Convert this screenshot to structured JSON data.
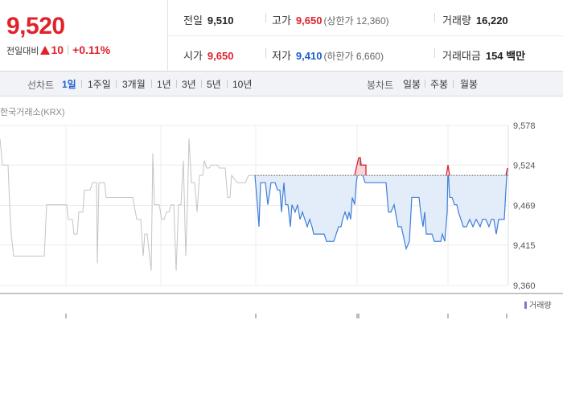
{
  "summary": {
    "price": "9,520",
    "diff_label": "전일대비",
    "diff_value": "10",
    "diff_rate": "+0.11%",
    "prev_close_label": "전일",
    "prev_close": "9,510",
    "high_label": "고가",
    "high": "9,650",
    "upper_limit": "(상한가 12,360)",
    "volume_label": "거래량",
    "volume": "16,220",
    "open_label": "시가",
    "open": "9,650",
    "low_label": "저가",
    "low": "9,410",
    "lower_limit": "(하한가 6,660)",
    "amount_label": "거래대금",
    "amount": "154 백만"
  },
  "tabs": {
    "line_label": "선차트",
    "line": [
      "1일",
      "1주일",
      "3개월",
      "1년",
      "3년",
      "5년",
      "10년"
    ],
    "candle_label": "봉차트",
    "candle": [
      "일봉",
      "주봉",
      "월봉"
    ],
    "active": "1일"
  },
  "chart_data": {
    "type": "line",
    "source_label": "한국거래소(KRX)",
    "ylim": [
      9360,
      9578
    ],
    "y_ticks": [
      "9,578",
      "9,524",
      "9,469",
      "9,415",
      "9,360"
    ],
    "y_tick_values": [
      9578,
      9524,
      9469,
      9415,
      9360
    ],
    "reference_line": 9510,
    "volume_legend": "거래량",
    "colors": {
      "previous": "#c4c4c4",
      "today": "#3f7ed8",
      "above": "#e0222b",
      "fill": "#e3edfa",
      "grid": "#ececec"
    },
    "previous_day": [
      [
        0,
        9560
      ],
      [
        3,
        9524
      ],
      [
        10,
        9524
      ],
      [
        12,
        9470
      ],
      [
        14,
        9430
      ],
      [
        17,
        9400
      ],
      [
        55,
        9400
      ],
      [
        58,
        9470
      ],
      [
        83,
        9470
      ],
      [
        85,
        9450
      ],
      [
        90,
        9450
      ],
      [
        92,
        9430
      ],
      [
        96,
        9430
      ],
      [
        98,
        9460
      ],
      [
        103,
        9460
      ],
      [
        105,
        9490
      ],
      [
        112,
        9490
      ],
      [
        115,
        9500
      ],
      [
        120,
        9500
      ],
      [
        121,
        9390
      ],
      [
        123,
        9500
      ],
      [
        130,
        9500
      ],
      [
        132,
        9480
      ],
      [
        165,
        9480
      ],
      [
        170,
        9450
      ],
      [
        175,
        9450
      ],
      [
        178,
        9400
      ],
      [
        180,
        9430
      ],
      [
        183,
        9430
      ],
      [
        186,
        9400
      ],
      [
        188,
        9380
      ],
      [
        190,
        9540
      ],
      [
        192,
        9470
      ],
      [
        198,
        9470
      ],
      [
        201,
        9450
      ],
      [
        204,
        9450
      ],
      [
        207,
        9460
      ],
      [
        210,
        9460
      ],
      [
        213,
        9470
      ],
      [
        216,
        9470
      ],
      [
        219,
        9380
      ],
      [
        222,
        9470
      ],
      [
        225,
        9470
      ],
      [
        228,
        9530
      ],
      [
        231,
        9400
      ],
      [
        233,
        9470
      ],
      [
        235,
        9560
      ],
      [
        238,
        9500
      ],
      [
        242,
        9500
      ],
      [
        245,
        9460
      ],
      [
        248,
        9510
      ],
      [
        252,
        9510
      ],
      [
        254,
        9530
      ],
      [
        257,
        9520
      ],
      [
        260,
        9520
      ],
      [
        263,
        9524
      ],
      [
        270,
        9524
      ],
      [
        273,
        9520
      ],
      [
        280,
        9520
      ],
      [
        283,
        9480
      ],
      [
        286,
        9480
      ],
      [
        288,
        9510
      ],
      [
        295,
        9500
      ],
      [
        305,
        9500
      ],
      [
        309,
        9510
      ],
      [
        317,
        9510
      ]
    ],
    "today": [
      [
        317,
        9510
      ],
      [
        320,
        9470
      ],
      [
        322,
        9440
      ],
      [
        324,
        9500
      ],
      [
        330,
        9500
      ],
      [
        333,
        9470
      ],
      [
        337,
        9500
      ],
      [
        342,
        9500
      ],
      [
        345,
        9490
      ],
      [
        348,
        9490
      ],
      [
        350,
        9460
      ],
      [
        353,
        9500
      ],
      [
        355,
        9470
      ],
      [
        358,
        9470
      ],
      [
        361,
        9440
      ],
      [
        363,
        9470
      ],
      [
        367,
        9460
      ],
      [
        370,
        9470
      ],
      [
        373,
        9450
      ],
      [
        376,
        9460
      ],
      [
        379,
        9450
      ],
      [
        382,
        9440
      ],
      [
        385,
        9450
      ],
      [
        388,
        9440
      ],
      [
        390,
        9430
      ],
      [
        403,
        9430
      ],
      [
        406,
        9420
      ],
      [
        415,
        9420
      ],
      [
        418,
        9430
      ],
      [
        421,
        9440
      ],
      [
        424,
        9440
      ],
      [
        426,
        9450
      ],
      [
        429,
        9460
      ],
      [
        432,
        9450
      ],
      [
        434,
        9460
      ],
      [
        436,
        9450
      ],
      [
        438,
        9480
      ],
      [
        441,
        9470
      ],
      [
        443,
        9500
      ],
      [
        446,
        9524
      ],
      [
        448,
        9534
      ],
      [
        451,
        9510
      ],
      [
        454,
        9500
      ],
      [
        457,
        9500
      ],
      [
        461,
        9500
      ],
      [
        464,
        9500
      ],
      [
        480,
        9500
      ],
      [
        483,
        9460
      ],
      [
        486,
        9460
      ],
      [
        490,
        9470
      ],
      [
        495,
        9440
      ],
      [
        499,
        9440
      ],
      [
        503,
        9420
      ],
      [
        505,
        9410
      ],
      [
        509,
        9420
      ],
      [
        512,
        9480
      ],
      [
        521,
        9480
      ],
      [
        523,
        9460
      ],
      [
        526,
        9440
      ],
      [
        528,
        9460
      ],
      [
        530,
        9430
      ],
      [
        534,
        9430
      ],
      [
        537,
        9430
      ],
      [
        540,
        9420
      ],
      [
        544,
        9420
      ],
      [
        548,
        9420
      ],
      [
        550,
        9430
      ],
      [
        553,
        9420
      ],
      [
        556,
        9460
      ],
      [
        557,
        9524
      ],
      [
        559,
        9480
      ],
      [
        562,
        9480
      ],
      [
        565,
        9470
      ],
      [
        568,
        9470
      ],
      [
        570,
        9460
      ],
      [
        573,
        9450
      ],
      [
        576,
        9440
      ],
      [
        580,
        9440
      ],
      [
        584,
        9450
      ],
      [
        588,
        9440
      ],
      [
        592,
        9450
      ],
      [
        597,
        9440
      ],
      [
        600,
        9450
      ],
      [
        604,
        9450
      ],
      [
        608,
        9440
      ],
      [
        611,
        9450
      ],
      [
        614,
        9450
      ],
      [
        617,
        9430
      ],
      [
        620,
        9450
      ],
      [
        624,
        9450
      ],
      [
        627,
        9450
      ],
      [
        630,
        9510
      ],
      [
        631,
        9520
      ]
    ],
    "above_segments": [
      [
        [
          441,
          9510
        ],
        [
          443,
          9520
        ],
        [
          446,
          9534
        ],
        [
          448,
          9534
        ],
        [
          448,
          9524
        ],
        [
          455,
          9524
        ],
        [
          455,
          9510
        ]
      ],
      [
        [
          555,
          9510
        ],
        [
          557,
          9524
        ],
        [
          559,
          9510
        ]
      ],
      [
        [
          629,
          9510
        ],
        [
          631,
          9520
        ]
      ]
    ],
    "volume_marks": [
      82,
      318,
      444,
      446,
      557,
      630
    ]
  }
}
